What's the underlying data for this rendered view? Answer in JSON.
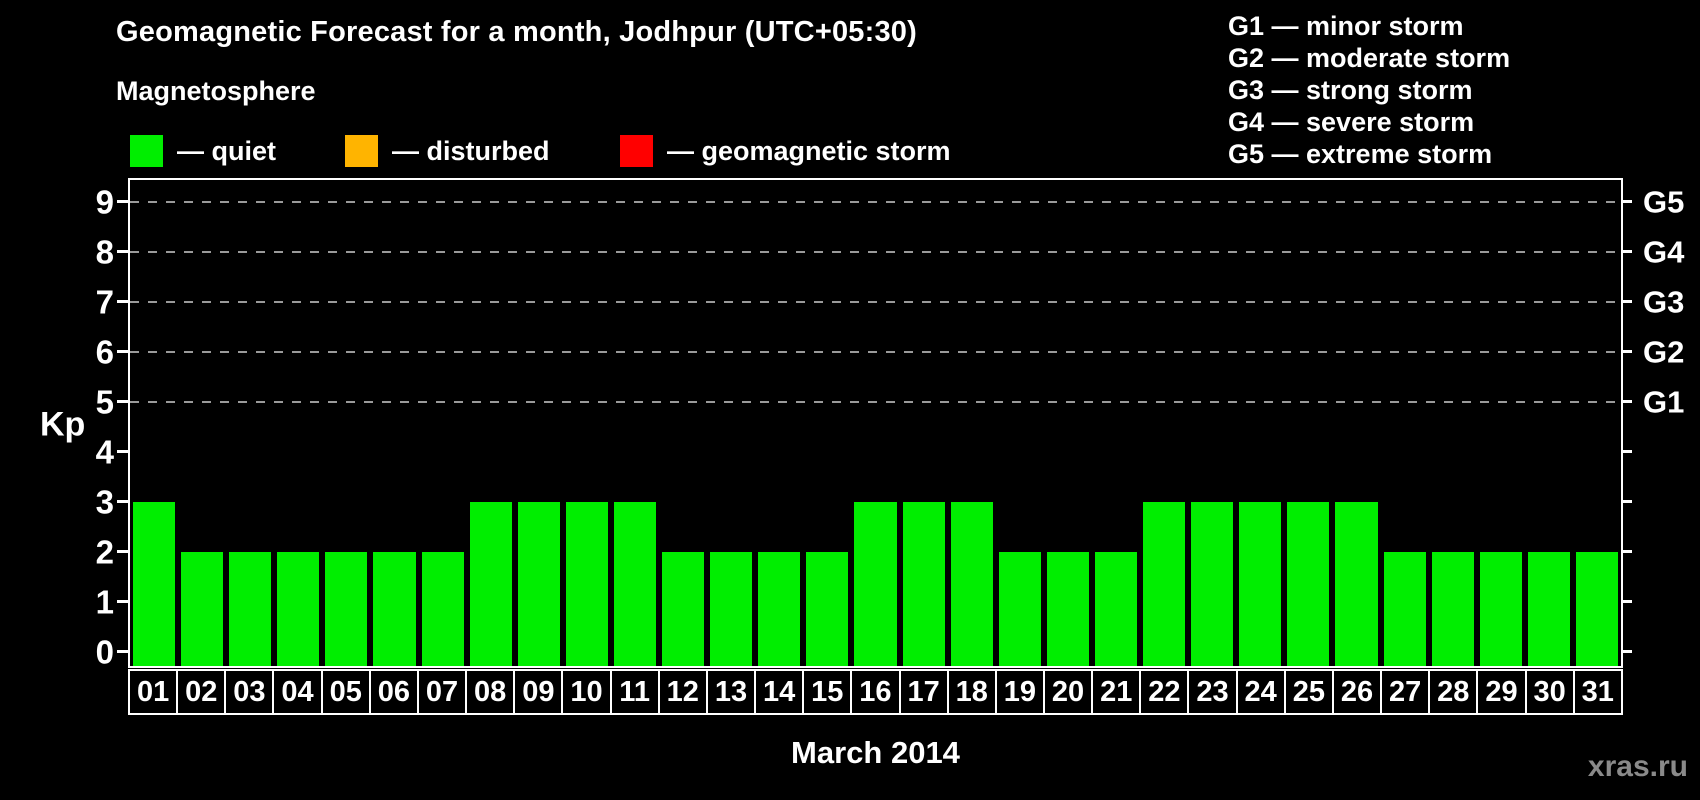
{
  "page": {
    "title": "Geomagnetic Forecast for a month, Jodhpur (UTC+05:30)",
    "subtitle": "Magnetosphere",
    "watermark": "xras.ru"
  },
  "legend": {
    "items": [
      {
        "name": "quiet",
        "label": "— quiet",
        "color": "#00ee00"
      },
      {
        "name": "disturbed",
        "label": "— disturbed",
        "color": "#ffb400"
      },
      {
        "name": "geomagnetic-storm",
        "label": "— geomagnetic storm",
        "color": "#ff0000"
      }
    ]
  },
  "g_scale": {
    "items": [
      "G1 — minor storm",
      "G2 — moderate storm",
      "G3 — strong storm",
      "G4 — severe storm",
      "G5 — extreme storm"
    ]
  },
  "chart_data": {
    "type": "bar",
    "title": "Geomagnetic Forecast for a month, Jodhpur (UTC+05:30)",
    "xlabel": "March 2014",
    "ylabel": "Kp",
    "categories": [
      "01",
      "02",
      "03",
      "04",
      "05",
      "06",
      "07",
      "08",
      "09",
      "10",
      "11",
      "12",
      "13",
      "14",
      "15",
      "16",
      "17",
      "18",
      "19",
      "20",
      "21",
      "22",
      "23",
      "24",
      "25",
      "26",
      "27",
      "28",
      "29",
      "30",
      "31"
    ],
    "values": [
      3,
      2,
      2,
      2,
      2,
      2,
      2,
      3,
      3,
      3,
      3,
      2,
      2,
      2,
      2,
      3,
      3,
      3,
      2,
      2,
      2,
      3,
      3,
      3,
      3,
      3,
      2,
      2,
      2,
      2,
      2
    ],
    "bar_color": "#00ee00",
    "background_color": "#000000",
    "ylim": [
      0,
      9.5
    ],
    "yticks": [
      0,
      1,
      2,
      3,
      4,
      5,
      6,
      7,
      8,
      9
    ],
    "gridlines_at_kp": [
      5,
      6,
      7,
      8,
      9
    ],
    "grid_style": "dashed",
    "right_axis": [
      {
        "label": "G1",
        "kp": 5
      },
      {
        "label": "G2",
        "kp": 6
      },
      {
        "label": "G3",
        "kp": 7
      },
      {
        "label": "G4",
        "kp": 8
      },
      {
        "label": "G5",
        "kp": 9
      }
    ],
    "legend_position": "top-left"
  },
  "footer": {
    "month_label": "March 2014"
  }
}
